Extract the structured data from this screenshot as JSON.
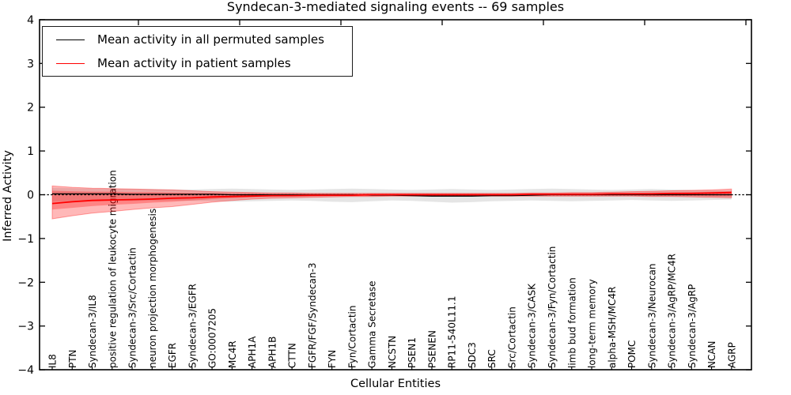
{
  "title": "Syndecan-3-mediated signaling events -- 69 samples",
  "legend": {
    "entries": [
      {
        "label": "Mean activity in all permuted samples",
        "color": "#000000"
      },
      {
        "label": "Mean activity in patient samples",
        "color": "#ff0000"
      }
    ]
  },
  "colors": {
    "patient": "#ff0000",
    "permuted": "#000000",
    "permuted_band_fill": "rgba(0,0,0,0.10)",
    "patient_band_fill": "rgba(255,0,0,0.28)",
    "patient_band_edge": "rgba(255,0,0,0.35)",
    "axis": "#000000"
  },
  "chart_data": {
    "type": "line",
    "title": "Syndecan-3-mediated signaling events -- 69 samples",
    "xlabel": "Cellular Entities",
    "ylabel": "Inferred Activity",
    "ylim": [
      -4,
      4
    ],
    "yticks": [
      4,
      3,
      2,
      1,
      0,
      -1,
      -2,
      -3,
      -4
    ],
    "grid": false,
    "zero_line": "dashed",
    "legend_position": "upper left",
    "x_tick_label_rotation": 90,
    "categories": [
      "IL8",
      "PTN",
      "Syndecan-3/IL8",
      "positive regulation of leukocyte migration",
      "Syndecan-3/Src/Cortactin",
      "neuron projection morphogenesis",
      "EGFR",
      "Syndecan-3/EGFR",
      "GO:0007205",
      "MC4R",
      "APH1A",
      "APH1B",
      "CTTN",
      "FGFR/FGF/Syndecan-3",
      "FYN",
      "Fyn/Cortactin",
      "Gamma Secretase",
      "NCSTN",
      "PSEN1",
      "PSENEN",
      "RP11-540L11.1",
      "SDC3",
      "SRC",
      "Src/Cortactin",
      "Syndecan-3/CASK",
      "Syndecan-3/Fyn/Cortactin",
      "limb bud formation",
      "long-term memory",
      "alpha-MSH/MC4R",
      "POMC",
      "Syndecan-3/Neurocan",
      "Syndecan-3/AgRP/MC4R",
      "Syndecan-3/AgRP",
      "NCAN",
      "AGRP"
    ],
    "series": [
      {
        "name": "Mean activity in all permuted samples",
        "kind": "line",
        "color": "#000000",
        "values": [
          0.02,
          0.02,
          0.02,
          0.02,
          0.01,
          0.01,
          0.01,
          0.01,
          0.01,
          0,
          0,
          0,
          0,
          0,
          0,
          0,
          -0.01,
          -0.01,
          -0.02,
          -0.03,
          -0.03,
          -0.03,
          -0.02,
          -0.02,
          -0.01,
          0,
          0,
          0,
          0,
          0,
          0,
          0,
          0,
          0,
          0
        ]
      },
      {
        "name": "Mean activity in patient samples",
        "kind": "line",
        "color": "#ff0000",
        "values": [
          -0.2,
          -0.16,
          -0.13,
          -0.12,
          -0.11,
          -0.1,
          -0.08,
          -0.07,
          -0.05,
          -0.04,
          -0.03,
          -0.02,
          -0.02,
          -0.01,
          -0.01,
          -0.01,
          0,
          0,
          0,
          0,
          0,
          0,
          0,
          0,
          0.01,
          0.01,
          0.01,
          0.01,
          0.02,
          0.02,
          0.02,
          0.03,
          0.03,
          0.04,
          0.05
        ]
      },
      {
        "name": "permuted samples band",
        "kind": "band",
        "upper": [
          0.16,
          0.15,
          0.14,
          0.14,
          0.13,
          0.13,
          0.12,
          0.12,
          0.13,
          0.14,
          0.13,
          0.12,
          0.11,
          0.12,
          0.13,
          0.14,
          0.13,
          0.12,
          0.11,
          0.12,
          0.13,
          0.12,
          0.11,
          0.12,
          0.13,
          0.14,
          0.13,
          0.12,
          0.11,
          0.12,
          0.13,
          0.12,
          0.11,
          0.1,
          0.1
        ],
        "lower": [
          -0.16,
          -0.15,
          -0.15,
          -0.14,
          -0.14,
          -0.13,
          -0.13,
          -0.14,
          -0.15,
          -0.16,
          -0.15,
          -0.14,
          -0.13,
          -0.14,
          -0.16,
          -0.17,
          -0.15,
          -0.13,
          -0.14,
          -0.16,
          -0.18,
          -0.17,
          -0.15,
          -0.14,
          -0.13,
          -0.14,
          -0.15,
          -0.14,
          -0.13,
          -0.12,
          -0.13,
          -0.14,
          -0.13,
          -0.12,
          -0.11
        ]
      },
      {
        "name": "patient samples band (outer)",
        "kind": "band",
        "upper": [
          0.2,
          0.17,
          0.15,
          0.14,
          0.13,
          0.12,
          0.11,
          0.09,
          0.07,
          0.06,
          0.05,
          0.04,
          0.04,
          0.03,
          0.03,
          0.03,
          0.03,
          0.03,
          0.03,
          0.03,
          0.03,
          0.03,
          0.03,
          0.03,
          0.04,
          0.04,
          0.05,
          0.05,
          0.06,
          0.07,
          0.08,
          0.09,
          0.1,
          0.11,
          0.13
        ],
        "lower": [
          -0.55,
          -0.48,
          -0.42,
          -0.38,
          -0.34,
          -0.3,
          -0.27,
          -0.22,
          -0.17,
          -0.13,
          -0.1,
          -0.08,
          -0.07,
          -0.06,
          -0.05,
          -0.04,
          -0.04,
          -0.03,
          -0.03,
          -0.03,
          -0.03,
          -0.03,
          -0.03,
          -0.03,
          -0.03,
          -0.03,
          -0.03,
          -0.03,
          -0.03,
          -0.03,
          -0.04,
          -0.04,
          -0.05,
          -0.06,
          -0.07
        ]
      },
      {
        "name": "patient samples band (inner)",
        "kind": "band",
        "upper": [
          0.09,
          0.08,
          0.07,
          0.07,
          0.06,
          0.06,
          0.05,
          0.04,
          0.04,
          0.03,
          0.03,
          0.02,
          0.02,
          0.02,
          0.02,
          0.02,
          0.02,
          0.02,
          0.02,
          0.02,
          0.02,
          0.02,
          0.02,
          0.02,
          0.02,
          0.02,
          0.03,
          0.03,
          0.04,
          0.04,
          0.05,
          0.05,
          0.06,
          0.07,
          0.08
        ],
        "lower": [
          -0.34,
          -0.3,
          -0.26,
          -0.23,
          -0.21,
          -0.18,
          -0.16,
          -0.13,
          -0.1,
          -0.08,
          -0.06,
          -0.05,
          -0.04,
          -0.04,
          -0.03,
          -0.03,
          -0.02,
          -0.02,
          -0.02,
          -0.02,
          -0.02,
          -0.02,
          -0.02,
          -0.02,
          -0.02,
          -0.02,
          -0.02,
          -0.02,
          -0.02,
          -0.02,
          -0.03,
          -0.03,
          -0.03,
          -0.04,
          -0.04
        ]
      }
    ]
  }
}
